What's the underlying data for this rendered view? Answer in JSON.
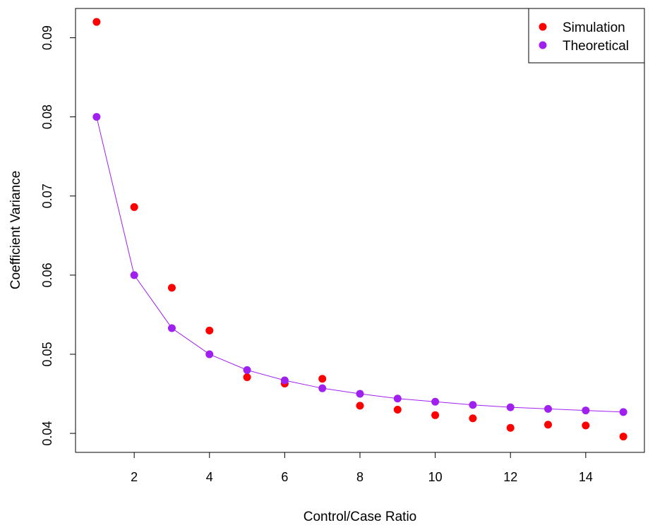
{
  "chart_data": {
    "type": "scatter",
    "title": "",
    "xlabel": "Control/Case Ratio",
    "ylabel": "Coefficient Variance",
    "xlim": [
      0.44,
      15.56
    ],
    "ylim": [
      0.0376,
      0.0937
    ],
    "x_ticks": [
      2,
      4,
      6,
      8,
      10,
      12,
      14
    ],
    "y_ticks": [
      0.04,
      0.05,
      0.06,
      0.07,
      0.08,
      0.09
    ],
    "x_tick_labels": [
      "2",
      "4",
      "6",
      "8",
      "10",
      "12",
      "14"
    ],
    "y_tick_labels": [
      "0.04",
      "0.05",
      "0.06",
      "0.07",
      "0.08",
      "0.09"
    ],
    "grid": false,
    "legend_position": "top-right",
    "series": [
      {
        "name": "Simulation",
        "color": "#ff0000",
        "line": false,
        "x": [
          1,
          2,
          3,
          4,
          5,
          6,
          7,
          8,
          9,
          10,
          11,
          12,
          13,
          14,
          15
        ],
        "y": [
          0.092,
          0.0686,
          0.0584,
          0.053,
          0.0471,
          0.0463,
          0.0469,
          0.0435,
          0.043,
          0.0423,
          0.0419,
          0.0407,
          0.0411,
          0.041,
          0.0396
        ]
      },
      {
        "name": "Theoretical",
        "color": "#a020f0",
        "line": true,
        "x": [
          1,
          2,
          3,
          4,
          5,
          6,
          7,
          8,
          9,
          10,
          11,
          12,
          13,
          14,
          15
        ],
        "y": [
          0.08,
          0.06,
          0.0533,
          0.05,
          0.048,
          0.0467,
          0.0457,
          0.045,
          0.0444,
          0.044,
          0.0436,
          0.0433,
          0.0431,
          0.0429,
          0.0427
        ]
      }
    ]
  }
}
